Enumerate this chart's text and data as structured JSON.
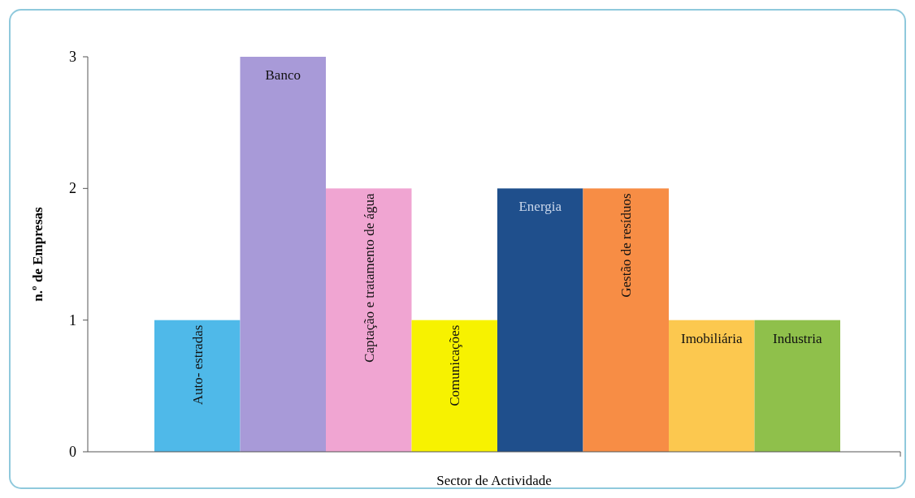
{
  "chart_data": {
    "type": "bar",
    "xlabel": "Sector de Actividade",
    "ylabel": "n.º de Empresas",
    "categories": [
      "Auto- estradas",
      "Banco",
      "Captação e tratamento de água",
      "Comunicações",
      "Energia",
      "Gestão de resíduos",
      "Imobiliária",
      "Industria"
    ],
    "values": [
      1,
      3,
      2,
      1,
      2,
      2,
      1,
      1
    ],
    "colors": [
      "#4fb9e9",
      "#a89ad8",
      "#f0a5d2",
      "#f7f200",
      "#1f4f8c",
      "#f78d45",
      "#fcc84f",
      "#8fc04b"
    ],
    "ylim": [
      0,
      3
    ],
    "yticks": [
      0,
      1,
      2,
      3
    ]
  }
}
